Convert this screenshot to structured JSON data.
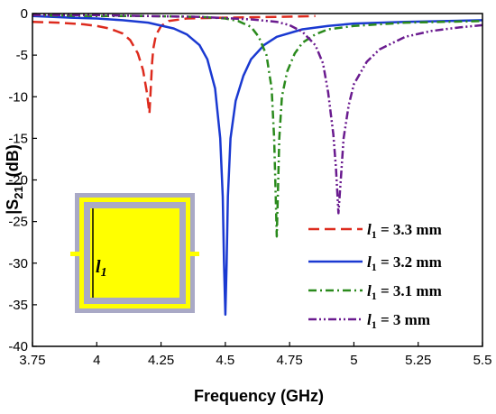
{
  "chart_data": {
    "type": "line",
    "xlabel": "Frequency (GHz)",
    "ylabel_main": "|S",
    "ylabel_sub": "21",
    "ylabel_tail": "| (dB)",
    "xlim": [
      3.75,
      5.5
    ],
    "ylim": [
      -40,
      0
    ],
    "xticks": [
      3.75,
      4,
      4.25,
      4.5,
      4.75,
      5,
      5.25,
      5.5
    ],
    "xtick_labels": [
      "3.75",
      "4",
      "4.25",
      "4.5",
      "4.75",
      "5",
      "5.25",
      "5.5"
    ],
    "yticks": [
      0,
      -5,
      -10,
      -15,
      -20,
      -25,
      -30,
      -35,
      -40
    ],
    "ytick_labels": [
      "0",
      "-5",
      "-10",
      "-15",
      "-20",
      "-25",
      "-30",
      "-35",
      "-40"
    ],
    "grid": false,
    "legend_position": "lower-right",
    "series": [
      {
        "legend_sym": "l",
        "legend_sub": "1",
        "legend_value": " = 3.3 mm",
        "color": "#dd2b1e",
        "dash": "12,6",
        "x": [
          3.75,
          3.85,
          3.95,
          4.0,
          4.05,
          4.1,
          4.13,
          4.16,
          4.18,
          4.195,
          4.205,
          4.21,
          4.215,
          4.22,
          4.23,
          4.25,
          4.28,
          4.35,
          4.5,
          4.7,
          4.85
        ],
        "y": [
          -1.0,
          -1.1,
          -1.3,
          -1.5,
          -1.8,
          -2.4,
          -3.2,
          -4.8,
          -6.8,
          -9.5,
          -12.0,
          -9.0,
          -6.0,
          -4.2,
          -2.6,
          -1.5,
          -0.9,
          -0.6,
          -0.5,
          -0.4,
          -0.3
        ]
      },
      {
        "legend_sym": "l",
        "legend_sub": "1",
        "legend_value": " = 3.2 mm",
        "color": "#1a39d1",
        "dash": "",
        "x": [
          3.75,
          3.9,
          4.0,
          4.1,
          4.2,
          4.3,
          4.35,
          4.4,
          4.43,
          4.46,
          4.48,
          4.49,
          4.495,
          4.5,
          4.505,
          4.51,
          4.52,
          4.54,
          4.57,
          4.6,
          4.65,
          4.7,
          4.8,
          4.9,
          5.0,
          5.2,
          5.5
        ],
        "y": [
          -0.3,
          -0.5,
          -0.6,
          -0.8,
          -1.1,
          -1.8,
          -2.5,
          -3.8,
          -5.5,
          -9.0,
          -15.0,
          -22.0,
          -30.0,
          -36.2,
          -30.0,
          -22.0,
          -15.0,
          -10.5,
          -7.5,
          -5.5,
          -3.8,
          -2.8,
          -1.9,
          -1.5,
          -1.2,
          -1.0,
          -0.8
        ]
      },
      {
        "legend_sym": "l",
        "legend_sub": "1",
        "legend_value": " = 3.1 mm",
        "color": "#2a8a1c",
        "dash": "9,4,2,4",
        "x": [
          3.75,
          4.0,
          4.2,
          4.4,
          4.5,
          4.55,
          4.6,
          4.63,
          4.66,
          4.68,
          4.69,
          4.695,
          4.7,
          4.705,
          4.71,
          4.72,
          4.74,
          4.77,
          4.8,
          4.85,
          4.9,
          5.0,
          5.2,
          5.5
        ],
        "y": [
          -0.2,
          -0.3,
          -0.3,
          -0.4,
          -0.6,
          -0.9,
          -1.6,
          -2.8,
          -5.0,
          -9.0,
          -15.0,
          -21.0,
          -26.8,
          -21.0,
          -15.0,
          -10.0,
          -7.0,
          -4.8,
          -3.5,
          -2.5,
          -1.9,
          -1.5,
          -1.1,
          -0.9
        ]
      },
      {
        "legend_sym": "l",
        "legend_sub": "1",
        "legend_value": " = 3 mm",
        "color": "#6a1b8f",
        "dash": "9,3,2,3,2,3",
        "x": [
          3.75,
          4.0,
          4.2,
          4.4,
          4.6,
          4.7,
          4.75,
          4.8,
          4.85,
          4.88,
          4.9,
          4.92,
          4.93,
          4.94,
          4.95,
          4.96,
          4.98,
          5.0,
          5.05,
          5.1,
          5.2,
          5.3,
          5.4,
          5.5
        ],
        "y": [
          -0.2,
          -0.2,
          -0.3,
          -0.4,
          -0.7,
          -1.0,
          -1.4,
          -2.2,
          -3.8,
          -6.0,
          -9.5,
          -14.5,
          -18.5,
          -24.0,
          -19.5,
          -15.0,
          -11.0,
          -8.5,
          -5.8,
          -4.3,
          -2.8,
          -2.1,
          -1.7,
          -1.4
        ]
      }
    ]
  },
  "inset": {
    "label_sym": "l",
    "label_sub": "1"
  }
}
